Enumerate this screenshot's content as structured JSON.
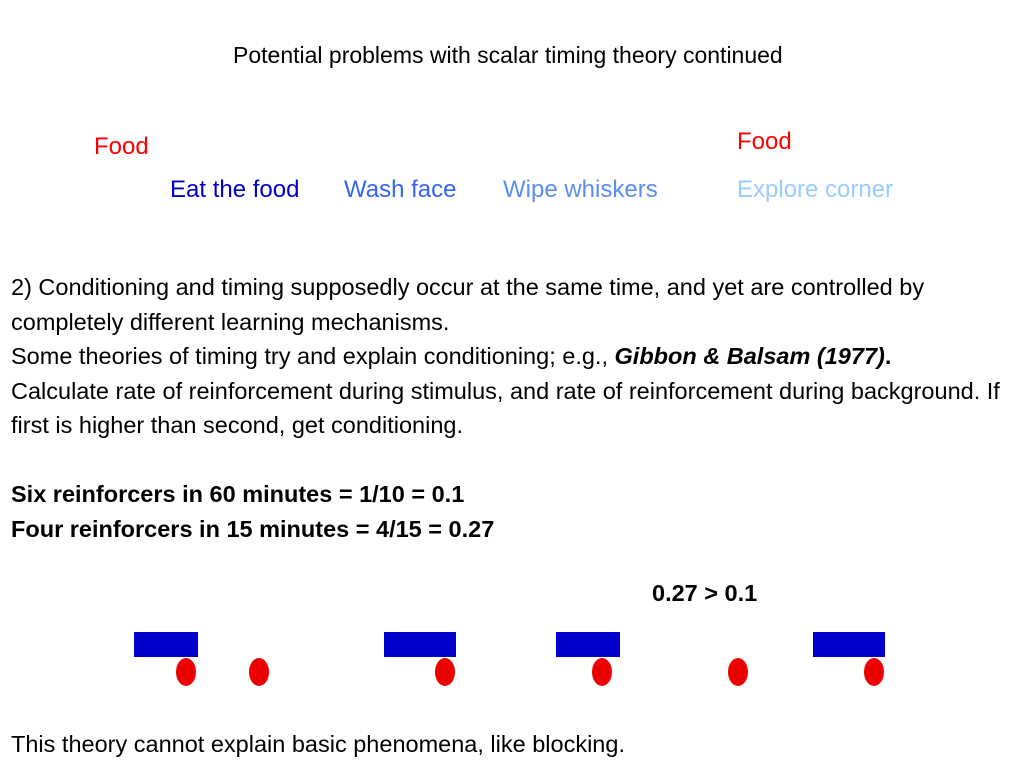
{
  "title": "Potential problems with scalar timing theory continued",
  "food_labels": [
    "Food",
    "Food"
  ],
  "behaviors": [
    {
      "label": "Eat the food",
      "color": "#0000cc"
    },
    {
      "label": "Wash face",
      "color": "#3366ee"
    },
    {
      "label": "Wipe whiskers",
      "color": "#5b8ef0"
    },
    {
      "label": "Explore corner",
      "color": "#99ccff"
    }
  ],
  "body": {
    "point2": "2)  Conditioning and timing supposedly occur at the same time, and yet are controlled by completely different learning mechanisms.",
    "theories_prefix": "Some theories of timing try and explain conditioning; e.g., ",
    "theories_citation": "Gibbon & Balsam (1977)",
    "theories_suffix": ".",
    "calculate": "Calculate rate of reinforcement during stimulus, and rate of reinforcement during background.  If first is higher than second, get conditioning.",
    "six": "Six reinforcers in 60 minutes = 1/10 = 0.1",
    "four": "Four reinforcers in 15 minutes = 4/15 =  0.27"
  },
  "comparison": "0.27 > 0.1",
  "timeline": {
    "bar_color": "#0000cc",
    "dot_color": "#ee0000"
  },
  "footer": "This theory cannot explain basic phenomena, like blocking."
}
